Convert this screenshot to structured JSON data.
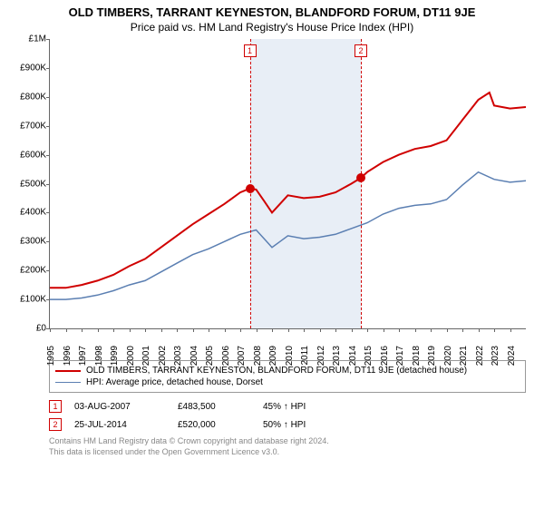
{
  "title": "OLD TIMBERS, TARRANT KEYNESTON, BLANDFORD FORUM, DT11 9JE",
  "subtitle": "Price paid vs. HM Land Registry's House Price Index (HPI)",
  "chart": {
    "type": "line",
    "background_color": "#ffffff",
    "axis_color": "#666666",
    "tick_fontsize": 10,
    "title_fontsize": 13,
    "subtitle_fontsize": 12,
    "ylim": [
      0,
      1000000
    ],
    "ytick_step": 100000,
    "ytick_labels": [
      "£0",
      "£100K",
      "£200K",
      "£300K",
      "£400K",
      "£500K",
      "£600K",
      "£700K",
      "£800K",
      "£900K",
      "£1M"
    ],
    "x_years": [
      1995,
      1996,
      1997,
      1998,
      1999,
      2000,
      2001,
      2002,
      2003,
      2004,
      2005,
      2006,
      2007,
      2008,
      2009,
      2010,
      2011,
      2012,
      2013,
      2014,
      2015,
      2016,
      2017,
      2018,
      2019,
      2020,
      2021,
      2022,
      2023,
      2024
    ],
    "xlim": [
      1995,
      2025
    ],
    "shaded_band": {
      "from": 2007.6,
      "to": 2014.6,
      "color": "#e8eef6"
    },
    "series": [
      {
        "key": "price_paid",
        "label": "OLD TIMBERS, TARRANT KEYNESTON, BLANDFORD FORUM, DT11 9JE (detached house)",
        "color": "#d00000",
        "line_width": 2,
        "points": [
          [
            1995,
            140000
          ],
          [
            1996,
            140000
          ],
          [
            1997,
            150000
          ],
          [
            1998,
            165000
          ],
          [
            1999,
            185000
          ],
          [
            2000,
            215000
          ],
          [
            2001,
            240000
          ],
          [
            2002,
            280000
          ],
          [
            2003,
            320000
          ],
          [
            2004,
            360000
          ],
          [
            2005,
            395000
          ],
          [
            2006,
            430000
          ],
          [
            2007,
            470000
          ],
          [
            2007.6,
            483500
          ],
          [
            2008,
            480000
          ],
          [
            2008.5,
            440000
          ],
          [
            2009,
            400000
          ],
          [
            2009.5,
            430000
          ],
          [
            2010,
            460000
          ],
          [
            2011,
            450000
          ],
          [
            2012,
            455000
          ],
          [
            2013,
            470000
          ],
          [
            2014,
            500000
          ],
          [
            2014.6,
            520000
          ],
          [
            2015,
            540000
          ],
          [
            2016,
            575000
          ],
          [
            2017,
            600000
          ],
          [
            2018,
            620000
          ],
          [
            2019,
            630000
          ],
          [
            2020,
            650000
          ],
          [
            2021,
            720000
          ],
          [
            2022,
            790000
          ],
          [
            2022.7,
            815000
          ],
          [
            2023,
            770000
          ],
          [
            2024,
            760000
          ],
          [
            2025,
            765000
          ]
        ]
      },
      {
        "key": "hpi",
        "label": "HPI: Average price, detached house, Dorset",
        "color": "#5b7fb2",
        "line_width": 1.5,
        "points": [
          [
            1995,
            100000
          ],
          [
            1996,
            100000
          ],
          [
            1997,
            105000
          ],
          [
            1998,
            115000
          ],
          [
            1999,
            130000
          ],
          [
            2000,
            150000
          ],
          [
            2001,
            165000
          ],
          [
            2002,
            195000
          ],
          [
            2003,
            225000
          ],
          [
            2004,
            255000
          ],
          [
            2005,
            275000
          ],
          [
            2006,
            300000
          ],
          [
            2007,
            325000
          ],
          [
            2008,
            340000
          ],
          [
            2008.5,
            310000
          ],
          [
            2009,
            280000
          ],
          [
            2009.5,
            300000
          ],
          [
            2010,
            320000
          ],
          [
            2011,
            310000
          ],
          [
            2012,
            315000
          ],
          [
            2013,
            325000
          ],
          [
            2014,
            345000
          ],
          [
            2015,
            365000
          ],
          [
            2016,
            395000
          ],
          [
            2017,
            415000
          ],
          [
            2018,
            425000
          ],
          [
            2019,
            430000
          ],
          [
            2020,
            445000
          ],
          [
            2021,
            495000
          ],
          [
            2022,
            540000
          ],
          [
            2023,
            515000
          ],
          [
            2024,
            505000
          ],
          [
            2025,
            510000
          ]
        ]
      }
    ],
    "transactions": [
      {
        "n": 1,
        "year": 2007.6,
        "date": "03-AUG-2007",
        "price": "£483,500",
        "pct": "45% ↑ HPI",
        "dot_y": 483500
      },
      {
        "n": 2,
        "year": 2014.6,
        "date": "25-JUL-2014",
        "price": "£520,000",
        "pct": "50% ↑ HPI",
        "dot_y": 520000
      }
    ]
  },
  "legend_label_1": "OLD TIMBERS, TARRANT KEYNESTON, BLANDFORD FORUM, DT11 9JE (detached house)",
  "legend_label_2": "HPI: Average price, detached house, Dorset",
  "footer_line1": "Contains HM Land Registry data © Crown copyright and database right 2024.",
  "footer_line2": "This data is licensed under the Open Government Licence v3.0."
}
